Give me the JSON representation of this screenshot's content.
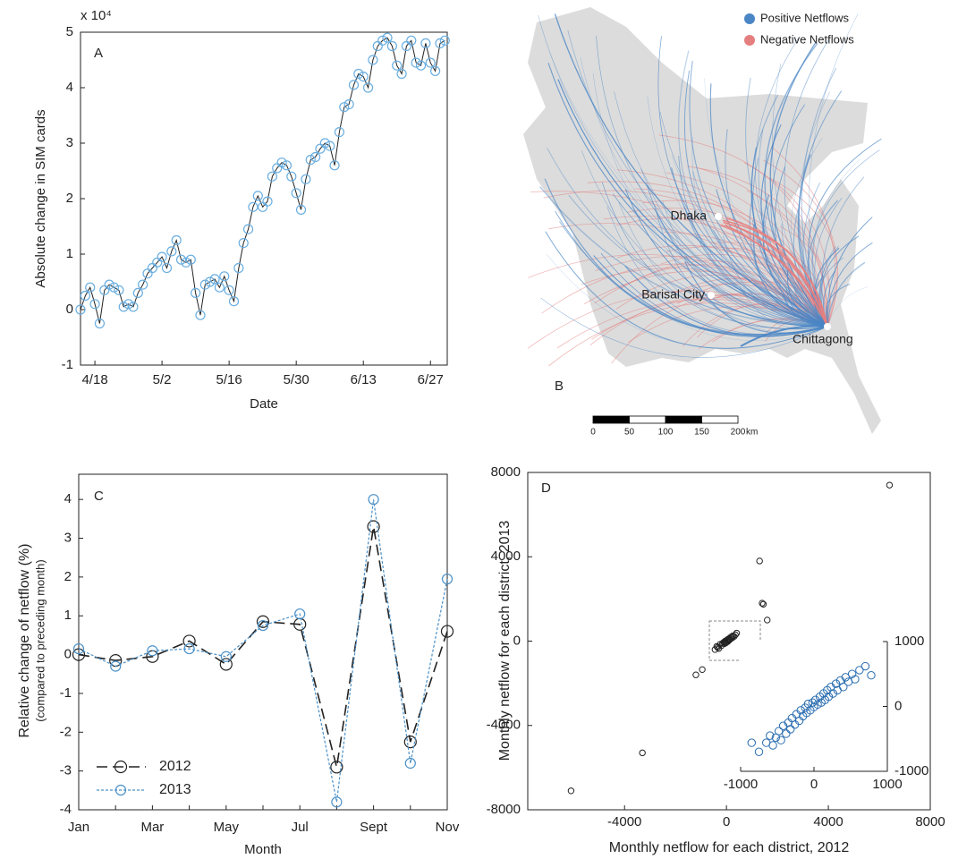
{
  "chart_data": [
    {
      "type": "line",
      "label": "A",
      "multiplier": "x 10⁴",
      "xlabel": "Date",
      "ylabel": "Absolute change in SIM cards",
      "x": [
        105,
        106,
        107,
        108,
        109,
        110,
        111,
        112,
        113,
        114,
        115,
        116,
        117,
        118,
        119,
        120,
        121,
        122,
        123,
        124,
        125,
        126,
        127,
        128,
        129,
        130,
        131,
        132,
        133,
        134,
        135,
        136,
        137,
        138,
        139,
        140,
        141,
        142,
        143,
        144,
        145,
        146,
        147,
        148,
        149,
        150,
        151,
        152,
        153,
        154,
        155,
        156,
        157,
        158,
        159,
        160,
        161,
        162,
        163,
        164,
        165,
        166,
        167,
        168,
        169,
        170,
        171,
        172,
        173,
        174,
        175,
        176,
        177,
        178,
        179,
        180,
        181
      ],
      "series": [
        {
          "color": "#6aaee0",
          "line_color": "#222222",
          "values": [
            0,
            0.25,
            0.4,
            0.1,
            -0.25,
            0.35,
            0.45,
            0.4,
            0.35,
            0.05,
            0.1,
            0.05,
            0.3,
            0.45,
            0.65,
            0.75,
            0.85,
            0.95,
            0.75,
            1.05,
            1.25,
            0.9,
            0.85,
            0.9,
            0.3,
            -0.1,
            0.45,
            0.5,
            0.55,
            0.4,
            0.6,
            0.35,
            0.15,
            0.75,
            1.2,
            1.45,
            1.85,
            2.05,
            1.85,
            1.95,
            2.4,
            2.55,
            2.65,
            2.6,
            2.4,
            2.1,
            1.8,
            2.35,
            2.7,
            2.75,
            2.9,
            3.0,
            2.95,
            2.6,
            3.2,
            3.65,
            3.7,
            4.05,
            4.25,
            4.2,
            4.0,
            4.5,
            4.75,
            4.85,
            4.9,
            4.75,
            4.4,
            4.25,
            4.75,
            4.85,
            4.45,
            4.4,
            4.8,
            4.45,
            4.3,
            4.8,
            4.85
          ]
        }
      ],
      "xlim": [
        105,
        181.5
      ],
      "xticks": [
        {
          "value": 108,
          "label": "4/18"
        },
        {
          "value": 122,
          "label": "5/2"
        },
        {
          "value": 136,
          "label": "5/16"
        },
        {
          "value": 150,
          "label": "5/30"
        },
        {
          "value": 164,
          "label": "6/13"
        },
        {
          "value": 178,
          "label": "6/27"
        }
      ],
      "ylim": [
        -1,
        5
      ],
      "yticks": [
        -1,
        0,
        1,
        2,
        3,
        4,
        5
      ]
    },
    {
      "type": "map",
      "label": "B",
      "legend": [
        {
          "name": "Positive Netflows",
          "color": "#4a86c5"
        },
        {
          "name": "Negative Netflows",
          "color": "#e57f7f"
        }
      ],
      "cities": [
        "Dhaka",
        "Barisal City",
        "Chittagong"
      ],
      "scale": {
        "ticks": [
          0,
          50,
          100,
          150,
          200
        ],
        "unit": "km"
      }
    },
    {
      "type": "line",
      "label": "C",
      "xlabel": "Month",
      "ylabel": "Relative change of netflow (%)",
      "ysublabel": "(compared to preceding month)",
      "categories": [
        "Jan",
        null,
        "Mar",
        null,
        "May",
        null,
        "Jul",
        null,
        "Sept",
        null,
        "Nov"
      ],
      "series": [
        {
          "name": "2012",
          "color": "#222222",
          "values": [
            0,
            -0.15,
            -0.05,
            0.35,
            -0.25,
            0.85,
            0.78,
            -2.9,
            3.3,
            -2.25,
            0.6
          ]
        },
        {
          "name": "2013",
          "color": "#4a90c8",
          "values": [
            0.15,
            -0.3,
            0.1,
            0.15,
            -0.05,
            0.75,
            1.05,
            -3.8,
            4.0,
            -2.8,
            1.95
          ]
        }
      ],
      "ylim": [
        -4,
        4.65
      ],
      "yticks": [
        -4,
        -3,
        -2,
        -1,
        0,
        1,
        2,
        3,
        4
      ],
      "legend": "lower left"
    },
    {
      "type": "scatter",
      "label": "D",
      "xlabel": "Monthly netflow for each district, 2012",
      "ylabel": "Monthly netflow for each district, 2013",
      "xlim": [
        -7800,
        8000
      ],
      "xticks": [
        -4000,
        0,
        4000,
        8000
      ],
      "ylim": [
        -8000,
        8000
      ],
      "yticks": [
        -8000,
        -4000,
        0,
        4000,
        8000
      ],
      "series": [
        {
          "color": "#222222",
          "x": [
            -450,
            -380,
            -300,
            -250,
            -200,
            -150,
            -100,
            -80,
            -50,
            0,
            20,
            50,
            80,
            100,
            150,
            180,
            220,
            250,
            300,
            350,
            400,
            -350,
            120,
            -20,
            60,
            -6100,
            -3300,
            6400,
            1300,
            1400,
            1450,
            1600,
            -1200,
            -950
          ],
          "values": [
            -400,
            -250,
            -350,
            -150,
            -220,
            -100,
            -50,
            -120,
            0,
            30,
            -40,
            80,
            40,
            120,
            100,
            200,
            150,
            250,
            220,
            300,
            380,
            -300,
            60,
            -80,
            -10,
            -7100,
            -5300,
            7400,
            3800,
            1800,
            1750,
            1000,
            -1600,
            -1350
          ]
        }
      ],
      "inset": {
        "xlim": [
          -1000,
          1000
        ],
        "xticks": [
          -1000,
          0,
          1000
        ],
        "ylim": [
          -1000,
          1000
        ],
        "yticks": [
          -1000,
          0,
          1000
        ],
        "series": [
          {
            "color": "#2a6db0",
            "x": [
              -650,
              -600,
              -560,
              -520,
              -480,
              -450,
              -420,
              -380,
              -350,
              -320,
              -300,
              -260,
              -240,
              -200,
              -180,
              -150,
              -120,
              -100,
              -80,
              -50,
              -20,
              0,
              20,
              50,
              80,
              100,
              130,
              150,
              180,
              200,
              230,
              260,
              300,
              320,
              360,
              400,
              430,
              470,
              520,
              560,
              620,
              700,
              -750,
              -850,
              780
            ],
            "values": [
              -560,
              -450,
              -600,
              -480,
              -380,
              -520,
              -300,
              -420,
              -250,
              -350,
              -180,
              -280,
              -120,
              -220,
              -60,
              -150,
              -20,
              -100,
              40,
              -60,
              60,
              -10,
              100,
              30,
              150,
              60,
              200,
              100,
              250,
              150,
              300,
              200,
              350,
              250,
              400,
              300,
              450,
              380,
              500,
              420,
              560,
              620,
              -700,
              -560,
              480
            ]
          }
        ]
      }
    }
  ]
}
